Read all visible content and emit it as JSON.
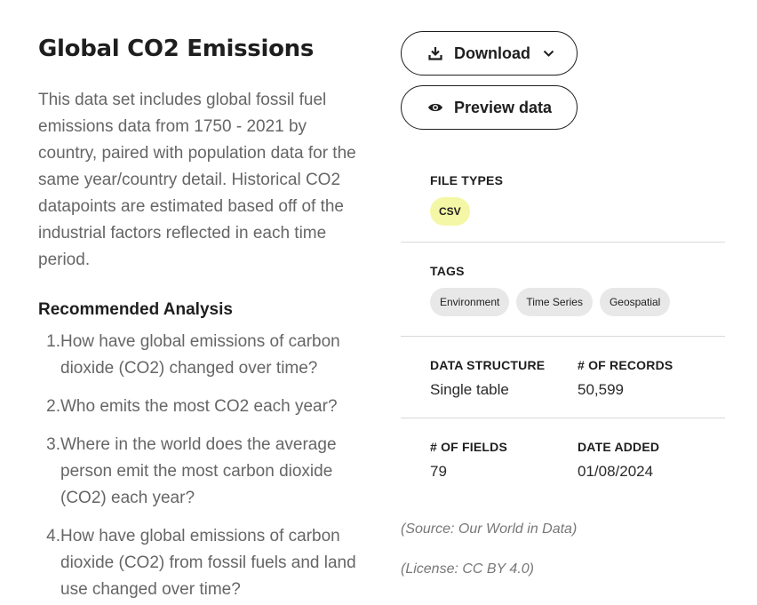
{
  "title": "Global CO2 Emissions",
  "description": "This data set includes global fossil fuel emissions data from 1750 - 2021 by country, paired with population data for the same year/country detail. Historical CO2 datapoints are estimated based off of the industrial factors reflected in each time period.",
  "recommended": {
    "heading": "Recommended Analysis",
    "questions": [
      {
        "num": "1.",
        "text": "How have global emissions of carbon dioxide (CO2) changed over time?"
      },
      {
        "num": "2.",
        "text": "Who emits the most CO2 each year?"
      },
      {
        "num": "3.",
        "text": "Where in the world does the average person emit the most carbon dioxide (CO2) each year?"
      },
      {
        "num": "4.",
        "text": "How have global emissions of carbon dioxide (CO2) from fossil fuels and land use changed over time?"
      }
    ]
  },
  "actions": {
    "download_label": "Download",
    "download_icon": "download-icon",
    "preview_label": "Preview data",
    "preview_icon": "eye-icon"
  },
  "meta": {
    "file_types_label": "FILE TYPES",
    "file_types": [
      "CSV"
    ],
    "tags_label": "TAGS",
    "tags": [
      "Environment",
      "Time Series",
      "Geospatial"
    ],
    "data_structure_label": "DATA STRUCTURE",
    "data_structure": "Single table",
    "records_label": "# OF RECORDS",
    "records": "50,599",
    "fields_label": "# OF FIELDS",
    "fields": "79",
    "date_added_label": "DATE ADDED",
    "date_added": "01/08/2024",
    "source": "(Source: Our World in Data)",
    "license": "(License: CC BY 4.0)"
  },
  "colors": {
    "text_dark": "#1e1e1e",
    "text_muted": "#666666",
    "csv_chip": "#f4f7a5",
    "tag_chip": "#e8e8e8"
  }
}
